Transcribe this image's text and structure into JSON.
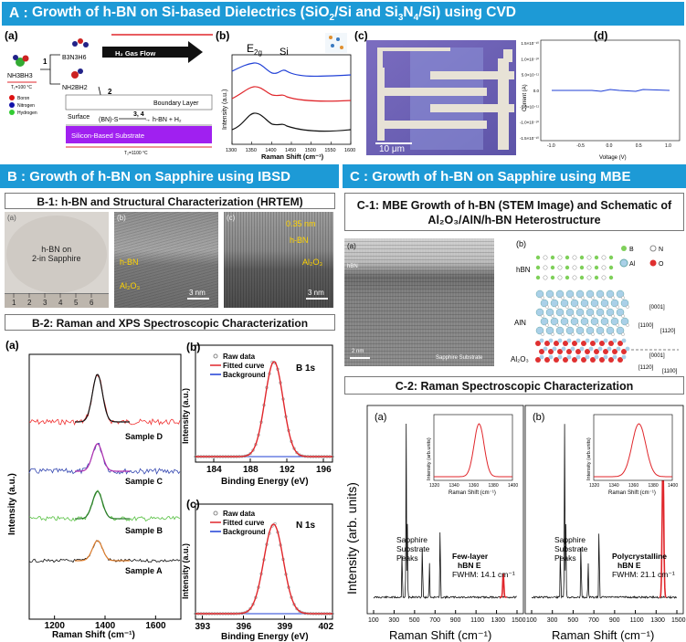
{
  "banner_a": {
    "prefix": "A",
    "sep": " : ",
    "text": "Growth of h-BN on Si-based Dielectrics (SiO",
    "sub1": "2",
    "mid": "/Si and Si",
    "sub2": "3",
    "mid2": "N",
    "sub3": "4",
    "end": "/Si) using CVD"
  },
  "banner_b": {
    "prefix": "B",
    "sep": " : ",
    "text": "Growth of h-BN on Sapphire using IBSD"
  },
  "banner_c": {
    "prefix": "C",
    "sep": " : ",
    "text": "Growth of h-BN on Sapphire using MBE"
  },
  "sectionA": {
    "panel_a": "(a)",
    "panel_b": "(b)",
    "panel_c": "(c)",
    "panel_d": "(d)",
    "nh3bh3": "NH3BH3",
    "t1": "T₁=100 °C",
    "b3n3h6": "B3N3H6",
    "nh2bh2": "NH2BH2",
    "step1": "1",
    "step2": "2",
    "step34": "3, 4",
    "gasflow": "H₂ Gas Flow",
    "boundary": "Boundary Layer",
    "surface": "Surface",
    "bns": "(BN)-S",
    "product": "→ h-BN + H₂",
    "substrate": "Silicon-Based Substrate",
    "t2": "T₂=1100 °C",
    "legend": [
      "Boron",
      "Nitrogen",
      "Hydrogen"
    ],
    "scalebar_c": "10 μm",
    "raman_b": {
      "ylabel": "Intensity (a.u.)",
      "xlabel": "Raman Shift (cm⁻¹)",
      "ticks": [
        "1300",
        "1350",
        "1400",
        "1450",
        "1500",
        "1550",
        "1600"
      ],
      "e2g": "E",
      "e2g_sub": "2g",
      "si": "Si"
    },
    "iv_d": {
      "ylabel": "Current (A)",
      "xlabel": "Voltage (V)",
      "xticks": [
        "-1.0",
        "-0.5",
        "0.0",
        "0.5",
        "1.0"
      ],
      "yticks": [
        "1.5×10⁻¹⁰",
        "1.0×10⁻¹⁰",
        "5.0×10⁻¹¹",
        "0.0",
        "-5.0×10⁻¹¹",
        "-1.0×10⁻¹⁰",
        "-1.5×10⁻¹⁰"
      ]
    }
  },
  "sectionB": {
    "b1_title": "B-1: h-BN and Structural Characterization (HRTEM)",
    "b2_title": "B-2: Raman and XPS Spectroscopic Characterization",
    "tem": {
      "a": "(a)",
      "b": "(b)",
      "c": "(c)",
      "wafer": "h-BN on\n2-in Sapphire",
      "hbn": "h-BN",
      "al2o3": "Al₂O₃",
      "scale": "3 nm",
      "d": "0.35 nm",
      "hbn2": "h-BN",
      "al2o3b": "Al₂O₃",
      "scale2": "3 nm",
      "ruler": [
        "1",
        "2",
        "3",
        "4",
        "5",
        "6"
      ]
    },
    "raman_a": {
      "label": "(a)",
      "samples": [
        "Sample D",
        "Sample C",
        "Sample B",
        "Sample A"
      ],
      "ylabel": "Intensity (a.u.)",
      "xlabel": "Raman Shift (cm⁻¹)",
      "ticks": [
        "1200",
        "1400",
        "1600"
      ]
    },
    "xps_b": {
      "label": "(b)",
      "legend": [
        "Raw data",
        "Fitted curve",
        "Background"
      ],
      "peak": "B 1s",
      "ylabel": "Intensity (a.u.)",
      "xlabel": "Binding Energy (eV)",
      "ticks": [
        "184",
        "188",
        "192",
        "196"
      ]
    },
    "xps_c": {
      "label": "(c)",
      "legend": [
        "Raw data",
        "Fitted curve",
        "Background"
      ],
      "peak": "N 1s",
      "ylabel": "Intensity (a.u.)",
      "xlabel": "Binding Energy (eV)",
      "ticks": [
        "393",
        "396",
        "399",
        "402"
      ]
    }
  },
  "sectionC": {
    "c1_title_l1": "C-1: MBE Growth of h-BN (STEM Image) and Schematic of",
    "c1_title_l2": "Al₂O₃/AlN/h-BN Heterostructure",
    "c2_title": "C-2: Raman Spectroscopic Characterization",
    "stem": {
      "a": "(a)",
      "hbn": "hBN",
      "scale": "2 nm",
      "sapphire": "Sapphire Substrate"
    },
    "schem": {
      "b": "(b)",
      "hbn": "hBN",
      "aln": "AlN",
      "al2o3": "Al₂O₃",
      "legend": [
        "B",
        "N",
        "Al",
        "O"
      ],
      "dir1": "[0001]",
      "dir2": "[1100]",
      "dir3": "[1120]",
      "dir4": "[0001]",
      "dir5": "[1120]",
      "dir6": "[1100]"
    },
    "raman": {
      "ylabel": "Intensity (arb. units)",
      "xlabel": "Raman Shift (cm⁻¹)",
      "ticks": [
        "100",
        "300",
        "500",
        "700",
        "900",
        "1100",
        "1300",
        "1500"
      ],
      "left": {
        "label": "(a)",
        "sapphire": [
          "Sapphire",
          "Substrate",
          "Peaks"
        ],
        "peak_l1": "Few-layer",
        "peak_l2": "hBN E",
        "fwhm": "FWHM: 14.1 cm⁻¹",
        "inset_ticks": [
          "1320",
          "1340",
          "1360",
          "1380",
          "1400"
        ],
        "inset_y": "Intensity (arb.units)",
        "inset_x": "Raman Shift (cm⁻¹)"
      },
      "right": {
        "label": "(b)",
        "sapphire": [
          "Sapphire",
          "Substrate",
          "Peaks"
        ],
        "peak_l1": "Polycrystalline",
        "peak_l2": "hBN E",
        "fwhm": "FWHM: 21.1 cm⁻¹",
        "inset_ticks": [
          "1320",
          "1340",
          "1360",
          "1380",
          "1400"
        ],
        "inset_y": "Intensity (arb.units)",
        "inset_x": "Raman Shift (cm⁻¹)"
      }
    }
  },
  "colors": {
    "banner": "#1d9ad6",
    "substrate": "#a020f0",
    "blue": "#1f3fd6",
    "red": "#e0262b"
  }
}
